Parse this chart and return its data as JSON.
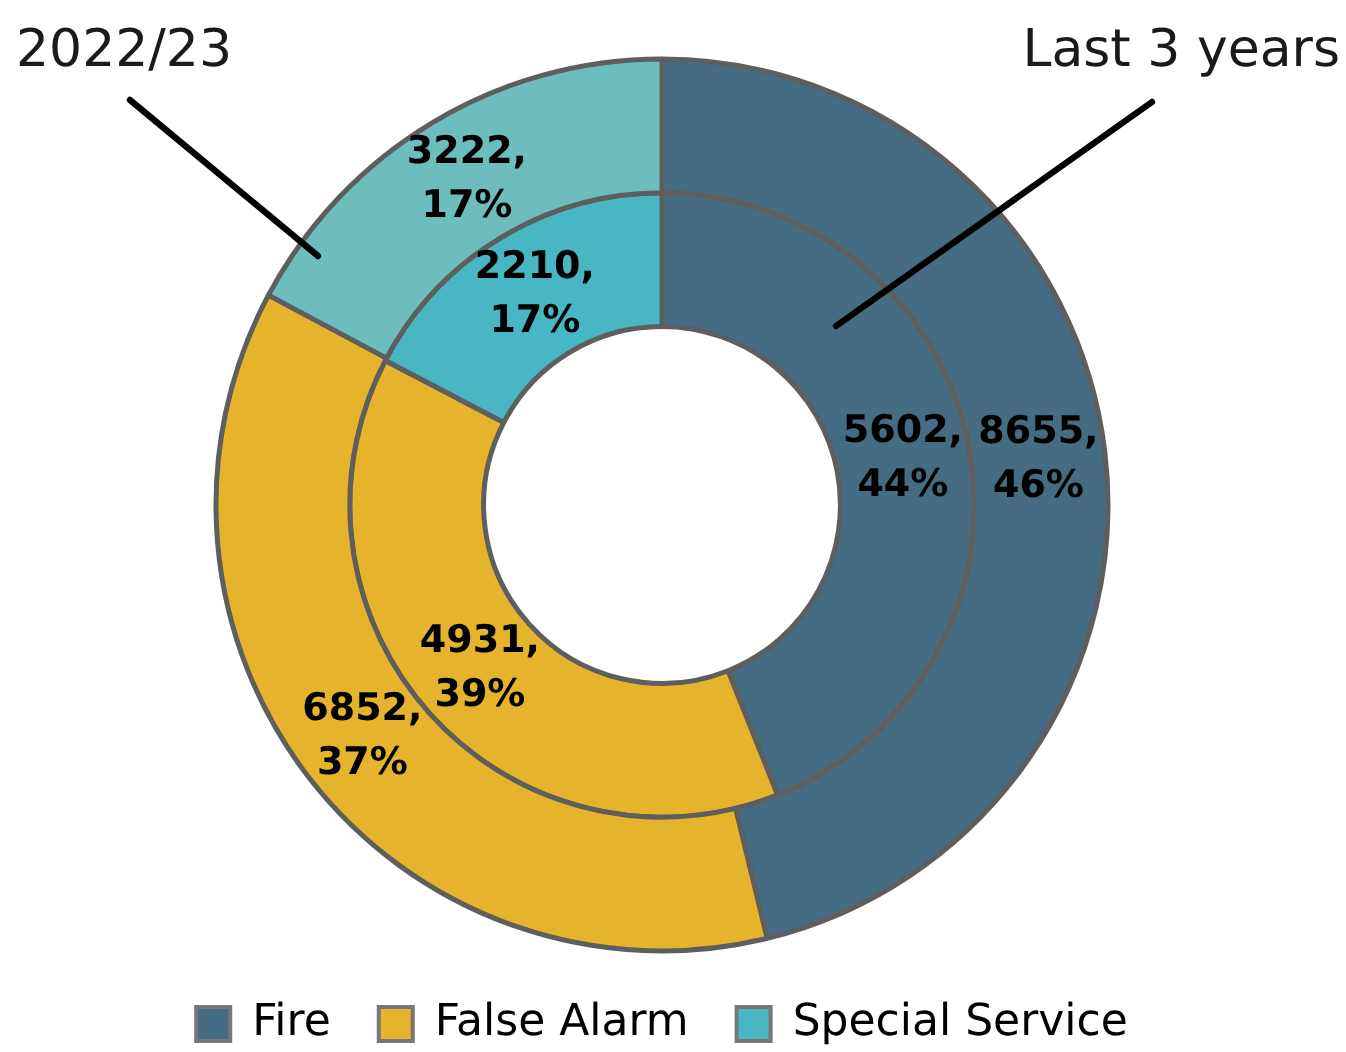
{
  "chart_data": {
    "type": "donut",
    "categories": [
      "Fire",
      "False Alarm",
      "Special Service"
    ],
    "series": [
      {
        "name": "2022/23",
        "colors": [
          "#466c84",
          "#e6b42c",
          "#6dbdbf"
        ],
        "values": [
          8655,
          6852,
          3222
        ],
        "value_labels": [
          "8655, 46%",
          "6852, 37%",
          "3222, 17%"
        ]
      },
      {
        "name": "Last 3 years",
        "colors": [
          "#466c84",
          "#e6b42c",
          "#48b6c3"
        ],
        "values": [
          5602,
          4931,
          2210
        ],
        "value_labels": [
          "5602, 44%",
          "4931, 39%",
          "2210, 17%"
        ]
      }
    ],
    "legend": "bottom"
  }
}
